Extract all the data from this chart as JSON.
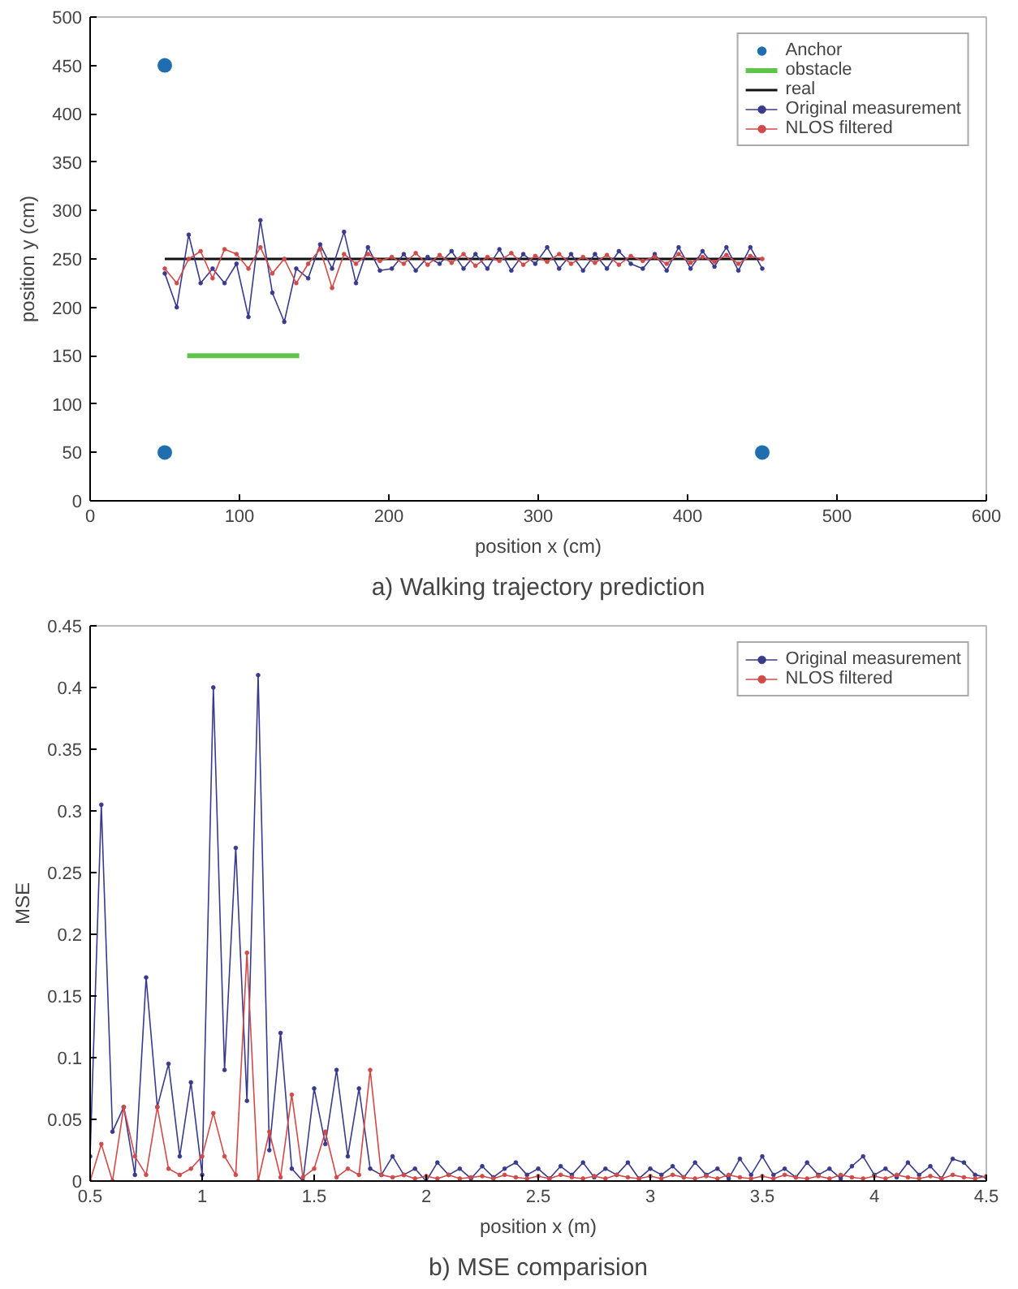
{
  "chart_data": [
    {
      "type": "line",
      "title": "a) Walking trajectory prediction",
      "xlabel": "position x (cm)",
      "ylabel": "position y (cm)",
      "xlim": [
        0,
        600
      ],
      "ylim": [
        0,
        500
      ],
      "xticks": [
        0,
        100,
        200,
        300,
        400,
        500,
        600
      ],
      "yticks": [
        0,
        50,
        100,
        150,
        200,
        250,
        300,
        350,
        400,
        450,
        500
      ],
      "grid": false,
      "legend": "top right",
      "series": [
        {
          "name": "Anchor",
          "type": "scatter",
          "marker": "circle",
          "color": "#1f6fb0",
          "x": [
            50,
            50,
            450
          ],
          "values": [
            450,
            50,
            50
          ]
        },
        {
          "name": "obstacle",
          "marker": "none",
          "color": "#5ec44a",
          "x": [
            65,
            140
          ],
          "values": [
            150,
            150
          ]
        },
        {
          "name": "real",
          "marker": "none",
          "color": "#111111",
          "x": [
            50,
            450
          ],
          "values": [
            250,
            250
          ]
        },
        {
          "name": "Original measurement",
          "marker": "circle",
          "color": "#3a3a8c",
          "x": [
            50,
            58,
            66,
            74,
            82,
            90,
            98,
            106,
            114,
            122,
            130,
            138,
            146,
            154,
            162,
            170,
            178,
            186,
            194,
            202,
            210,
            218,
            226,
            234,
            242,
            250,
            258,
            266,
            274,
            282,
            290,
            298,
            306,
            314,
            322,
            330,
            338,
            346,
            354,
            362,
            370,
            378,
            386,
            394,
            402,
            410,
            418,
            426,
            434,
            442,
            450
          ],
          "values": [
            235,
            200,
            275,
            225,
            240,
            225,
            245,
            190,
            290,
            215,
            185,
            240,
            230,
            265,
            240,
            278,
            225,
            262,
            238,
            240,
            255,
            238,
            252,
            245,
            258,
            240,
            255,
            240,
            260,
            238,
            255,
            245,
            262,
            240,
            255,
            238,
            255,
            240,
            258,
            245,
            240,
            255,
            238,
            262,
            240,
            258,
            242,
            262,
            238,
            262,
            240
          ]
        },
        {
          "name": "NLOS filtered",
          "marker": "circle",
          "color": "#d04a4a",
          "x": [
            50,
            58,
            66,
            74,
            82,
            90,
            98,
            106,
            114,
            122,
            130,
            138,
            146,
            154,
            162,
            170,
            178,
            186,
            194,
            202,
            210,
            218,
            226,
            234,
            242,
            250,
            258,
            266,
            274,
            282,
            290,
            298,
            306,
            314,
            322,
            330,
            338,
            346,
            354,
            362,
            370,
            378,
            386,
            394,
            402,
            410,
            418,
            426,
            434,
            442,
            450
          ],
          "values": [
            240,
            225,
            250,
            258,
            230,
            260,
            255,
            240,
            262,
            235,
            250,
            225,
            245,
            260,
            220,
            255,
            245,
            255,
            248,
            252,
            245,
            256,
            244,
            254,
            246,
            255,
            243,
            252,
            248,
            256,
            244,
            253,
            247,
            255,
            245,
            252,
            246,
            254,
            244,
            253,
            248,
            252,
            245,
            255,
            246,
            252,
            247,
            254,
            245,
            253,
            250
          ]
        }
      ]
    },
    {
      "type": "line",
      "title": "b) MSE comparision",
      "xlabel": "position x (m)",
      "ylabel": "MSE",
      "xlim": [
        0.5,
        4.5
      ],
      "ylim": [
        0,
        0.45
      ],
      "xticks": [
        0.5,
        1,
        1.5,
        2,
        2.5,
        3,
        3.5,
        4,
        4.5
      ],
      "yticks": [
        0,
        0.05,
        0.1,
        0.15,
        0.2,
        0.25,
        0.3,
        0.35,
        0.4,
        0.45
      ],
      "grid": false,
      "legend": "top right",
      "series": [
        {
          "name": "Original measurement",
          "marker": "circle",
          "color": "#3a3a8c",
          "x": [
            0.5,
            0.55,
            0.6,
            0.65,
            0.7,
            0.75,
            0.8,
            0.85,
            0.9,
            0.95,
            1,
            1.05,
            1.1,
            1.15,
            1.2,
            1.25,
            1.3,
            1.35,
            1.4,
            1.45,
            1.5,
            1.55,
            1.6,
            1.65,
            1.7,
            1.75,
            1.8,
            1.85,
            1.9,
            1.95,
            2,
            2.05,
            2.1,
            2.15,
            2.2,
            2.25,
            2.3,
            2.35,
            2.4,
            2.45,
            2.5,
            2.55,
            2.6,
            2.65,
            2.7,
            2.75,
            2.8,
            2.85,
            2.9,
            2.95,
            3,
            3.05,
            3.1,
            3.15,
            3.2,
            3.25,
            3.3,
            3.35,
            3.4,
            3.45,
            3.5,
            3.55,
            3.6,
            3.65,
            3.7,
            3.75,
            3.8,
            3.85,
            3.9,
            3.95,
            4,
            4.05,
            4.1,
            4.15,
            4.2,
            4.25,
            4.3,
            4.35,
            4.4,
            4.45,
            4.5
          ],
          "values": [
            0.02,
            0.305,
            0.04,
            0.06,
            0.005,
            0.165,
            0.06,
            0.095,
            0.02,
            0.08,
            0.005,
            0.4,
            0.09,
            0.27,
            0.065,
            0.41,
            0.025,
            0.12,
            0.01,
            0,
            0.075,
            0.03,
            0.09,
            0.02,
            0.075,
            0.01,
            0.005,
            0.02,
            0.005,
            0.01,
            0,
            0.015,
            0.005,
            0.01,
            0.002,
            0.012,
            0.003,
            0.01,
            0.015,
            0.005,
            0.01,
            0.002,
            0.012,
            0.005,
            0.015,
            0.003,
            0.01,
            0.005,
            0.015,
            0.002,
            0.01,
            0.005,
            0.012,
            0.003,
            0.015,
            0.005,
            0.01,
            0.002,
            0.018,
            0.005,
            0.02,
            0.005,
            0.01,
            0.003,
            0.015,
            0.005,
            0.01,
            0.002,
            0.012,
            0.02,
            0.005,
            0.01,
            0.003,
            0.015,
            0.005,
            0.012,
            0.002,
            0.018,
            0.015,
            0.005,
            0.003
          ]
        },
        {
          "name": "NLOS filtered",
          "marker": "circle",
          "color": "#d04a4a",
          "x": [
            0.5,
            0.55,
            0.6,
            0.65,
            0.7,
            0.75,
            0.8,
            0.85,
            0.9,
            0.95,
            1,
            1.05,
            1.1,
            1.15,
            1.2,
            1.25,
            1.3,
            1.35,
            1.4,
            1.45,
            1.5,
            1.55,
            1.6,
            1.65,
            1.7,
            1.75,
            1.8,
            1.85,
            1.9,
            1.95,
            2,
            2.05,
            2.1,
            2.15,
            2.2,
            2.25,
            2.3,
            2.35,
            2.4,
            2.45,
            2.5,
            2.55,
            2.6,
            2.65,
            2.7,
            2.75,
            2.8,
            2.85,
            2.9,
            2.95,
            3,
            3.05,
            3.1,
            3.15,
            3.2,
            3.25,
            3.3,
            3.35,
            3.4,
            3.45,
            3.5,
            3.55,
            3.6,
            3.65,
            3.7,
            3.75,
            3.8,
            3.85,
            3.9,
            3.95,
            4,
            4.05,
            4.1,
            4.15,
            4.2,
            4.25,
            4.3,
            4.35,
            4.4,
            4.45,
            4.5
          ],
          "values": [
            0,
            0.03,
            0,
            0.06,
            0.02,
            0.005,
            0.06,
            0.01,
            0.005,
            0.01,
            0.02,
            0.055,
            0.02,
            0.005,
            0.185,
            0,
            0.04,
            0.003,
            0.07,
            0.003,
            0.01,
            0.04,
            0.003,
            0.01,
            0.005,
            0.09,
            0.005,
            0.003,
            0.005,
            0.002,
            0.004,
            0.002,
            0.005,
            0.002,
            0.003,
            0.004,
            0.002,
            0.005,
            0.003,
            0.002,
            0.004,
            0.002,
            0.005,
            0.003,
            0.002,
            0.004,
            0.002,
            0.005,
            0.003,
            0.002,
            0.004,
            0.002,
            0.005,
            0.003,
            0.002,
            0.004,
            0.002,
            0.005,
            0.003,
            0.002,
            0.004,
            0.002,
            0.005,
            0.003,
            0.002,
            0.004,
            0.002,
            0.005,
            0.003,
            0.002,
            0.004,
            0.002,
            0.005,
            0.003,
            0.002,
            0.004,
            0.002,
            0.005,
            0.003,
            0.002,
            0.004
          ]
        }
      ]
    }
  ]
}
